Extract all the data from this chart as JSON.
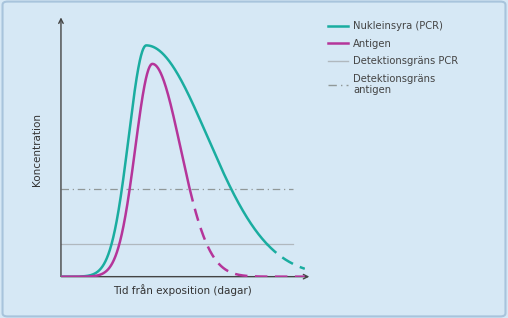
{
  "title": "",
  "xlabel": "Tid från exposition (dagar)",
  "ylabel": "Koncentration",
  "background_color": "#d6e8f5",
  "plot_bg_color": "none",
  "border_color": "#a8c4dc",
  "pcr_color": "#1aada0",
  "antigen_color": "#b5359a",
  "detection_pcr_color": "#b0b8be",
  "detection_antigen_color": "#909898",
  "detection_pcr_level": 0.14,
  "detection_antigen_level": 0.38,
  "legend_entries": [
    "Nukleinsyra (PCR)",
    "Antigen",
    "Detektionsgräns PCR",
    "Detektionsgräns\nantigen"
  ],
  "figsize": [
    5.08,
    3.18
  ],
  "dpi": 100
}
